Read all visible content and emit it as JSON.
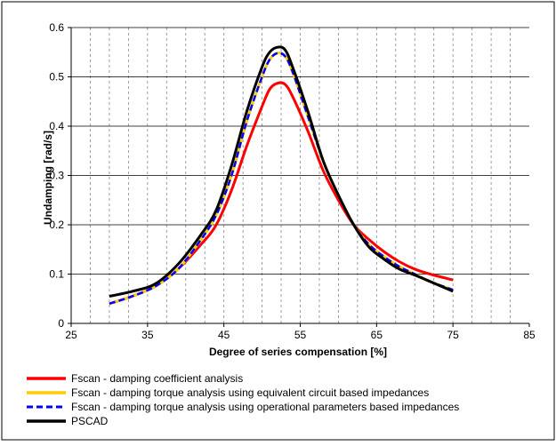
{
  "chart_data": {
    "type": "line",
    "title": "",
    "xlabel": "Degree of series compensation [%]",
    "ylabel": "Undamping [rad/s]",
    "xlim": [
      25,
      85
    ],
    "ylim": [
      0,
      0.6
    ],
    "x_ticks": [
      25,
      35,
      45,
      55,
      65,
      75,
      85
    ],
    "y_ticks": [
      0,
      0.1,
      0.2,
      0.3,
      0.4,
      0.5,
      0.6
    ],
    "x_tick_labels": [
      "25",
      "35",
      "45",
      "55",
      "65",
      "75",
      "85"
    ],
    "y_tick_labels": [
      "0",
      "0.1",
      "0.2",
      "0.3",
      "0.4",
      "0.5",
      "0.6"
    ],
    "grid": "horizontal solid major, vertical dashed minor",
    "legend_position": "bottom",
    "series": [
      {
        "name": "Fscan - damping coefficient analysis",
        "color": "#ff0000",
        "style": "solid",
        "points": [
          [
            30,
            0.04
          ],
          [
            33,
            0.055
          ],
          [
            36,
            0.075
          ],
          [
            39,
            0.11
          ],
          [
            42,
            0.16
          ],
          [
            44,
            0.2
          ],
          [
            46,
            0.27
          ],
          [
            48,
            0.36
          ],
          [
            50,
            0.44
          ],
          [
            51,
            0.475
          ],
          [
            52,
            0.487
          ],
          [
            53,
            0.485
          ],
          [
            54,
            0.46
          ],
          [
            56,
            0.39
          ],
          [
            58,
            0.31
          ],
          [
            60,
            0.25
          ],
          [
            62,
            0.2
          ],
          [
            64,
            0.17
          ],
          [
            66,
            0.145
          ],
          [
            68,
            0.125
          ],
          [
            70,
            0.11
          ],
          [
            72,
            0.1
          ],
          [
            75,
            0.088
          ]
        ]
      },
      {
        "name": "Fscan - damping torque analysis using equivalent circuit based impedances",
        "color": "#ffcc00",
        "style": "solid",
        "points": [
          [
            30,
            0.04
          ],
          [
            33,
            0.055
          ],
          [
            36,
            0.075
          ],
          [
            39,
            0.11
          ],
          [
            42,
            0.17
          ],
          [
            44,
            0.22
          ],
          [
            46,
            0.3
          ],
          [
            48,
            0.41
          ],
          [
            50,
            0.5
          ],
          [
            51,
            0.535
          ],
          [
            52,
            0.548
          ],
          [
            53,
            0.542
          ],
          [
            54,
            0.51
          ],
          [
            56,
            0.42
          ],
          [
            58,
            0.33
          ],
          [
            60,
            0.26
          ],
          [
            62,
            0.2
          ],
          [
            64,
            0.16
          ],
          [
            66,
            0.135
          ],
          [
            68,
            0.115
          ],
          [
            70,
            0.1
          ],
          [
            72,
            0.085
          ],
          [
            75,
            0.068
          ]
        ]
      },
      {
        "name": "Fscan - damping torque analysis using operational parameters based impedances",
        "color": "#0000ff",
        "style": "dashed",
        "points": [
          [
            30,
            0.04
          ],
          [
            33,
            0.055
          ],
          [
            36,
            0.075
          ],
          [
            39,
            0.11
          ],
          [
            42,
            0.17
          ],
          [
            44,
            0.22
          ],
          [
            46,
            0.3
          ],
          [
            48,
            0.41
          ],
          [
            50,
            0.5
          ],
          [
            51,
            0.535
          ],
          [
            52,
            0.548
          ],
          [
            53,
            0.542
          ],
          [
            54,
            0.51
          ],
          [
            56,
            0.42
          ],
          [
            58,
            0.33
          ],
          [
            60,
            0.26
          ],
          [
            62,
            0.2
          ],
          [
            64,
            0.16
          ],
          [
            66,
            0.135
          ],
          [
            68,
            0.115
          ],
          [
            70,
            0.1
          ],
          [
            72,
            0.085
          ],
          [
            75,
            0.068
          ]
        ]
      },
      {
        "name": "PSCAD",
        "color": "#000000",
        "style": "solid",
        "points": [
          [
            30,
            0.055
          ],
          [
            33,
            0.065
          ],
          [
            36,
            0.08
          ],
          [
            39,
            0.12
          ],
          [
            42,
            0.18
          ],
          [
            44,
            0.23
          ],
          [
            46,
            0.32
          ],
          [
            48,
            0.43
          ],
          [
            50,
            0.52
          ],
          [
            51,
            0.55
          ],
          [
            52,
            0.56
          ],
          [
            53,
            0.555
          ],
          [
            54,
            0.52
          ],
          [
            56,
            0.43
          ],
          [
            58,
            0.33
          ],
          [
            60,
            0.26
          ],
          [
            62,
            0.2
          ],
          [
            64,
            0.155
          ],
          [
            66,
            0.13
          ],
          [
            68,
            0.11
          ],
          [
            70,
            0.098
          ],
          [
            72,
            0.085
          ],
          [
            75,
            0.065
          ]
        ]
      }
    ]
  }
}
